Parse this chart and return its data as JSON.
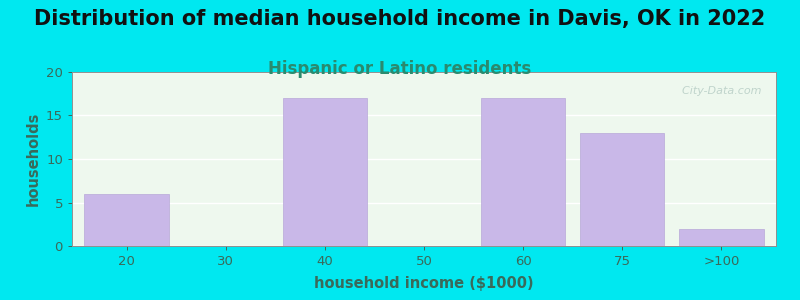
{
  "title": "Distribution of median household income in Davis, OK in 2022",
  "subtitle": "Hispanic or Latino residents",
  "xlabel": "household income ($1000)",
  "ylabel": "households",
  "categories": [
    "20",
    "30",
    "40",
    "50",
    "60",
    "75",
    ">100"
  ],
  "values": [
    6,
    0,
    17,
    0,
    17,
    13,
    2
  ],
  "bar_color": "#c9b8e8",
  "bar_edge_color": "#b8a8d8",
  "ylim": [
    0,
    20
  ],
  "yticks": [
    0,
    5,
    10,
    15,
    20
  ],
  "background_outer": "#00e8f0",
  "background_plot": "#eef8ee",
  "title_fontsize": 15,
  "title_color": "#111111",
  "subtitle_fontsize": 12,
  "subtitle_color": "#2a8a6e",
  "axis_label_color": "#3a6a5a",
  "tick_color": "#3a6a5a",
  "watermark": "  City-Data.com",
  "watermark_color": "#b0c8c0"
}
